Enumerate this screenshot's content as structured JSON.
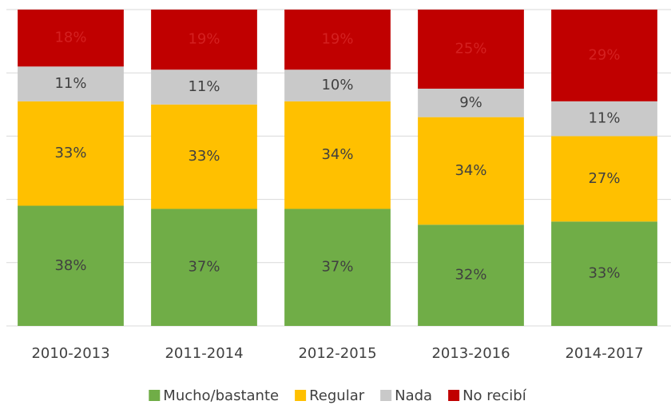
{
  "chart_data": {
    "type": "stacked_bar",
    "categories": [
      "2010-2013",
      "2011-2014",
      "2012-2015",
      "2013-2016",
      "2014-2017"
    ],
    "series": [
      {
        "name": "Mucho/bastante",
        "color": "#70ad47",
        "label_color": "#404040",
        "values": [
          38,
          37,
          37,
          32,
          33
        ],
        "value_labels": [
          "38%",
          "37%",
          "37%",
          "32%",
          "33%"
        ]
      },
      {
        "name": "Regular",
        "color": "#ffc000",
        "label_color": "#404040",
        "values": [
          33,
          33,
          34,
          34,
          27
        ],
        "value_labels": [
          "33%",
          "33%",
          "34%",
          "34%",
          "27%"
        ]
      },
      {
        "name": "Nada",
        "color": "#c9c9c9",
        "label_color": "#404040",
        "values": [
          11,
          11,
          10,
          9,
          11
        ],
        "value_labels": [
          "11%",
          "11%",
          "10%",
          "9%",
          "11%"
        ]
      },
      {
        "name": "No recibí",
        "color": "#c00000",
        "label_color": "#d42020",
        "values": [
          18,
          19,
          19,
          25,
          29
        ],
        "value_labels": [
          "18%",
          "19%",
          "19%",
          "25%",
          "29%"
        ]
      }
    ],
    "ylim": [
      0,
      100
    ],
    "yticks": [
      0,
      20,
      40,
      60,
      80,
      100
    ],
    "grid": true,
    "legend": "bottom"
  }
}
